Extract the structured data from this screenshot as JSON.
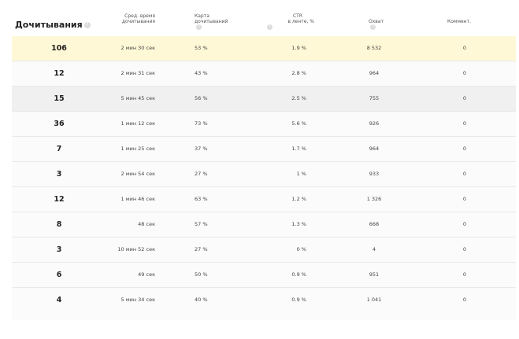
{
  "header": {
    "title": "Дочитывания",
    "time_line1": "Сред. время",
    "time_line2": "дочитывания",
    "card_line1": "Карта",
    "card_line2": "дочитываний",
    "ctr_line1": "CTR",
    "ctr_line2": "в ленте, %",
    "reach": "Охват",
    "comments": "Коммент.",
    "help_glyph": "?"
  },
  "rows": [
    {
      "reads": "106",
      "time": "2 мин 30 сек",
      "card": "53 %",
      "ctr": "1.9 %",
      "reach": "8 532",
      "comments": "0"
    },
    {
      "reads": "12",
      "time": "2 мин 31 сек",
      "card": "43 %",
      "ctr": "2.8 %",
      "reach": "964",
      "comments": "0"
    },
    {
      "reads": "15",
      "time": "5 мин 45 сек",
      "card": "56 %",
      "ctr": "2.5 %",
      "reach": "755",
      "comments": "0"
    },
    {
      "reads": "36",
      "time": "1 мин 12 сек",
      "card": "73 %",
      "ctr": "5.6 %",
      "reach": "926",
      "comments": "0"
    },
    {
      "reads": "7",
      "time": "1 мин 25 сек",
      "card": "37 %",
      "ctr": "1.7 %",
      "reach": "964",
      "comments": "0"
    },
    {
      "reads": "3",
      "time": "2 мин 54 сек",
      "card": "27 %",
      "ctr": "1 %",
      "reach": "933",
      "comments": "0"
    },
    {
      "reads": "12",
      "time": "1 мин 46 сек",
      "card": "63 %",
      "ctr": "1.2 %",
      "reach": "1 326",
      "comments": "0"
    },
    {
      "reads": "8",
      "time": "48 сек",
      "card": "57 %",
      "ctr": "1.3 %",
      "reach": "668",
      "comments": "0"
    },
    {
      "reads": "3",
      "time": "10 мин 52 сек",
      "card": "27 %",
      "ctr": "0 %",
      "reach": "4",
      "comments": "0"
    },
    {
      "reads": "6",
      "time": "49 сек",
      "card": "50 %",
      "ctr": "0.9 %",
      "reach": "951",
      "comments": "0"
    },
    {
      "reads": "4",
      "time": "5 мин 34 сек",
      "card": "40 %",
      "ctr": "0.9 %",
      "reach": "1 041",
      "comments": "0"
    }
  ],
  "colors": {
    "highlight_row": "#fff8d6",
    "hover_row": "#f0f0f0",
    "help_icon": "#dcdcdc"
  },
  "icons": {
    "help": "question-circle-icon"
  }
}
